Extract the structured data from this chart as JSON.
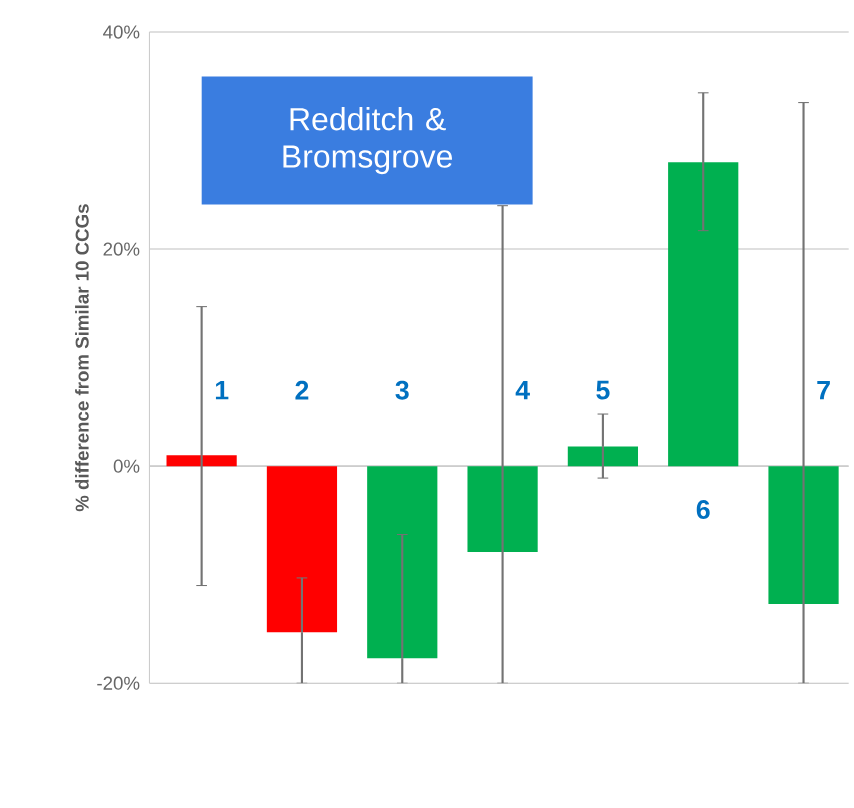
{
  "chart_data": {
    "type": "bar",
    "title": "Redditch & Bromsgrove",
    "ylabel": "% difference from Similar 10 CCGs",
    "categories": [
      "1",
      "2",
      "3",
      "4",
      "5",
      "6",
      "7"
    ],
    "values": [
      1,
      -15.3,
      -17.7,
      -7.9,
      1.8,
      28,
      -12.7
    ],
    "colors": [
      "#ff0000",
      "#ff0000",
      "#00b050",
      "#00b050",
      "#00b050",
      "#00b050",
      "#00b050"
    ],
    "errors": [
      [
        -11,
        14.7
      ],
      [
        -20,
        -10.3
      ],
      [
        -20,
        -6.3
      ],
      [
        -20,
        24
      ],
      [
        -1.1,
        4.8
      ],
      [
        21.7,
        34.4
      ],
      [
        -20,
        33.5
      ]
    ],
    "ylim": [
      -20,
      40
    ],
    "yticks": [
      {
        "value": -20,
        "label": "-20%"
      },
      {
        "value": 0,
        "label": "0%"
      },
      {
        "value": 20,
        "label": "20%"
      },
      {
        "value": 40,
        "label": "40%"
      }
    ],
    "grid": "y"
  }
}
